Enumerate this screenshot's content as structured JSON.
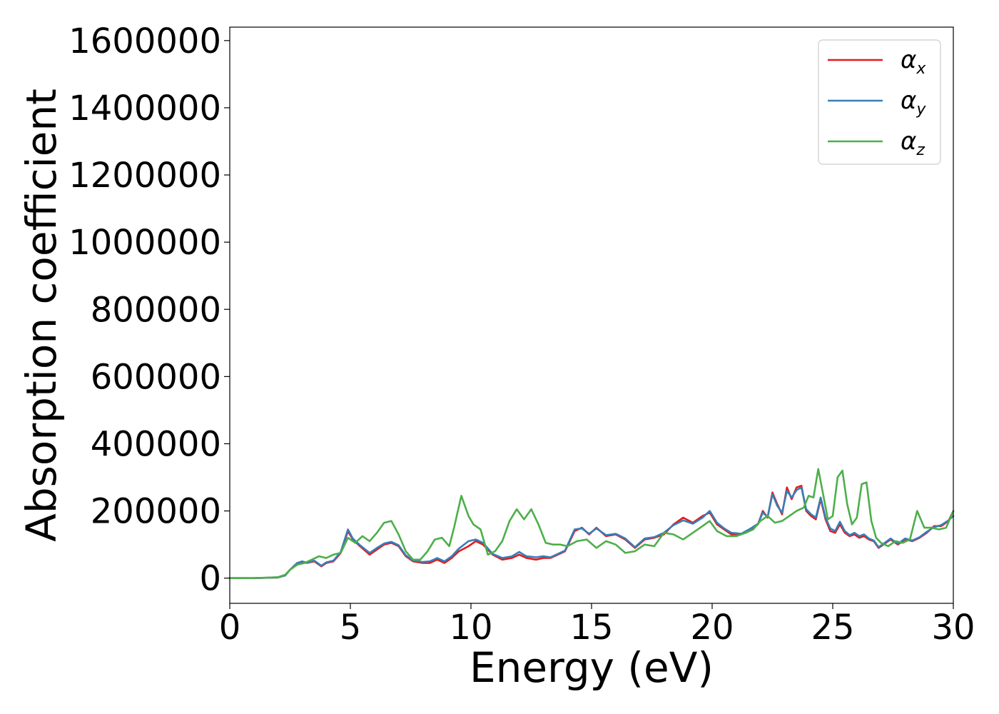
{
  "chart_data": {
    "type": "line",
    "title": "",
    "xlabel": "Energy (eV)",
    "ylabel": "Absorption coefficient",
    "xlim": [
      0,
      30
    ],
    "ylim": [
      -75000,
      1640000
    ],
    "xticks": [
      0,
      5,
      10,
      15,
      20,
      25,
      30
    ],
    "yticks": [
      0,
      200000,
      400000,
      600000,
      800000,
      1000000,
      1200000,
      1400000,
      1600000
    ],
    "xtick_labels": [
      "0",
      "5",
      "10",
      "15",
      "20",
      "25",
      "30"
    ],
    "ytick_labels": [
      "0",
      "200000",
      "400000",
      "600000",
      "800000",
      "1000000",
      "1200000",
      "1400000",
      "1600000"
    ],
    "grid": false,
    "legend_position": "top-right",
    "series": [
      {
        "name": "x",
        "symbol": "α",
        "subscript": "x",
        "color": "#e41a1c",
        "x": [
          0,
          1,
          2,
          2.3,
          2.5,
          2.8,
          3.0,
          3.2,
          3.5,
          3.8,
          4.0,
          4.3,
          4.6,
          4.9,
          5.1,
          5.4,
          5.8,
          6.1,
          6.4,
          6.7,
          7.0,
          7.3,
          7.6,
          8.0,
          8.3,
          8.6,
          8.9,
          9.2,
          9.5,
          9.9,
          10.2,
          10.5,
          10.9,
          11.3,
          11.7,
          12.0,
          12.3,
          12.7,
          13.0,
          13.3,
          13.6,
          13.9,
          14.3,
          14.6,
          14.9,
          15.2,
          15.6,
          16.0,
          16.4,
          16.8,
          17.2,
          17.6,
          18.0,
          18.4,
          18.8,
          19.2,
          19.6,
          19.9,
          20.2,
          20.5,
          20.8,
          21.2,
          21.6,
          21.9,
          22.1,
          22.3,
          22.5,
          22.7,
          22.9,
          23.1,
          23.3,
          23.5,
          23.7,
          23.9,
          24.1,
          24.3,
          24.5,
          24.7,
          24.9,
          25.1,
          25.3,
          25.5,
          25.7,
          25.9,
          26.1,
          26.3,
          26.5,
          26.7,
          26.9,
          27.1,
          27.4,
          27.7,
          28.0,
          28.3,
          28.6,
          28.9,
          29.2,
          29.5,
          29.8,
          30.0
        ],
        "values": [
          0,
          0,
          2000,
          8000,
          25000,
          45000,
          48000,
          45000,
          50000,
          35000,
          45000,
          50000,
          75000,
          140000,
          115000,
          95000,
          70000,
          85000,
          100000,
          105000,
          95000,
          65000,
          50000,
          45000,
          45000,
          55000,
          45000,
          60000,
          80000,
          95000,
          110000,
          100000,
          70000,
          55000,
          60000,
          70000,
          60000,
          55000,
          60000,
          60000,
          70000,
          80000,
          140000,
          150000,
          130000,
          150000,
          125000,
          130000,
          115000,
          90000,
          115000,
          120000,
          130000,
          160000,
          180000,
          165000,
          185000,
          195000,
          160000,
          145000,
          130000,
          130000,
          145000,
          160000,
          200000,
          180000,
          255000,
          220000,
          190000,
          270000,
          235000,
          270000,
          275000,
          200000,
          185000,
          175000,
          235000,
          175000,
          140000,
          135000,
          160000,
          135000,
          125000,
          130000,
          120000,
          125000,
          115000,
          110000,
          90000,
          100000,
          115000,
          100000,
          115000,
          110000,
          120000,
          135000,
          155000,
          155000,
          170000,
          200000
        ]
      },
      {
        "name": "y",
        "symbol": "α",
        "subscript": "y",
        "color": "#377eb8",
        "x": [
          0,
          1,
          2,
          2.3,
          2.5,
          2.8,
          3.0,
          3.2,
          3.5,
          3.8,
          4.0,
          4.3,
          4.6,
          4.9,
          5.1,
          5.4,
          5.8,
          6.1,
          6.4,
          6.7,
          7.0,
          7.3,
          7.6,
          8.0,
          8.3,
          8.6,
          8.9,
          9.2,
          9.5,
          9.9,
          10.2,
          10.5,
          10.9,
          11.3,
          11.7,
          12.0,
          12.3,
          12.7,
          13.0,
          13.3,
          13.6,
          13.9,
          14.3,
          14.6,
          14.9,
          15.2,
          15.6,
          16.0,
          16.4,
          16.8,
          17.2,
          17.6,
          18.0,
          18.4,
          18.8,
          19.2,
          19.6,
          19.9,
          20.2,
          20.5,
          20.8,
          21.2,
          21.6,
          21.9,
          22.1,
          22.3,
          22.5,
          22.7,
          22.9,
          23.1,
          23.3,
          23.5,
          23.7,
          23.9,
          24.1,
          24.3,
          24.5,
          24.7,
          24.9,
          25.1,
          25.3,
          25.5,
          25.7,
          25.9,
          26.1,
          26.3,
          26.5,
          26.7,
          26.9,
          27.1,
          27.4,
          27.7,
          28.0,
          28.3,
          28.6,
          28.9,
          29.2,
          29.5,
          29.8,
          30.0
        ],
        "values": [
          0,
          0,
          2000,
          8000,
          25000,
          45000,
          50000,
          46000,
          52000,
          37000,
          47000,
          52000,
          78000,
          145000,
          118000,
          98000,
          75000,
          90000,
          103000,
          108000,
          98000,
          68000,
          53000,
          48000,
          50000,
          60000,
          50000,
          65000,
          88000,
          110000,
          115000,
          105000,
          72000,
          60000,
          65000,
          78000,
          65000,
          62000,
          65000,
          62000,
          72000,
          82000,
          145000,
          148000,
          132000,
          148000,
          128000,
          132000,
          118000,
          92000,
          118000,
          122000,
          135000,
          158000,
          172000,
          162000,
          180000,
          200000,
          165000,
          148000,
          135000,
          132000,
          148000,
          162000,
          195000,
          182000,
          250000,
          215000,
          195000,
          260000,
          240000,
          262000,
          270000,
          205000,
          190000,
          180000,
          240000,
          180000,
          148000,
          140000,
          168000,
          140000,
          128000,
          135000,
          125000,
          130000,
          118000,
          112000,
          92000,
          102000,
          118000,
          102000,
          118000,
          112000,
          122000,
          138000,
          152000,
          158000,
          172000,
          185000
        ]
      },
      {
        "name": "z",
        "symbol": "α",
        "subscript": "z",
        "color": "#4daf4a",
        "x": [
          0,
          1,
          2,
          2.3,
          2.5,
          2.8,
          3.1,
          3.4,
          3.7,
          4.0,
          4.3,
          4.6,
          4.9,
          5.2,
          5.5,
          5.8,
          6.1,
          6.4,
          6.7,
          7.0,
          7.3,
          7.6,
          7.9,
          8.2,
          8.5,
          8.8,
          9.1,
          9.3,
          9.6,
          9.9,
          10.1,
          10.4,
          10.7,
          11.0,
          11.3,
          11.6,
          11.9,
          12.2,
          12.5,
          12.8,
          13.1,
          13.4,
          13.7,
          14.0,
          14.4,
          14.8,
          15.2,
          15.6,
          16.0,
          16.4,
          16.8,
          17.2,
          17.6,
          18.0,
          18.4,
          18.8,
          19.2,
          19.6,
          19.9,
          20.2,
          20.6,
          21.0,
          21.4,
          21.7,
          22.0,
          22.3,
          22.6,
          22.9,
          23.2,
          23.5,
          23.8,
          24.0,
          24.2,
          24.4,
          24.6,
          24.8,
          25.0,
          25.2,
          25.4,
          25.6,
          25.8,
          26.0,
          26.2,
          26.4,
          26.6,
          26.8,
          27.0,
          27.3,
          27.6,
          27.9,
          28.2,
          28.5,
          28.8,
          29.1,
          29.4,
          29.7,
          30.0
        ],
        "values": [
          0,
          0,
          3000,
          10000,
          25000,
          40000,
          45000,
          55000,
          65000,
          60000,
          70000,
          75000,
          120000,
          105000,
          125000,
          110000,
          135000,
          165000,
          170000,
          130000,
          80000,
          55000,
          55000,
          80000,
          115000,
          120000,
          95000,
          150000,
          245000,
          185000,
          160000,
          145000,
          70000,
          80000,
          110000,
          170000,
          205000,
          175000,
          205000,
          160000,
          105000,
          100000,
          100000,
          95000,
          110000,
          115000,
          90000,
          110000,
          100000,
          75000,
          80000,
          100000,
          95000,
          135000,
          130000,
          115000,
          135000,
          155000,
          170000,
          140000,
          125000,
          125000,
          135000,
          145000,
          170000,
          185000,
          165000,
          170000,
          185000,
          200000,
          210000,
          245000,
          240000,
          325000,
          250000,
          175000,
          185000,
          300000,
          320000,
          220000,
          160000,
          180000,
          280000,
          285000,
          170000,
          120000,
          105000,
          95000,
          110000,
          105000,
          115000,
          200000,
          150000,
          150000,
          145000,
          150000,
          200000
        ]
      }
    ]
  }
}
